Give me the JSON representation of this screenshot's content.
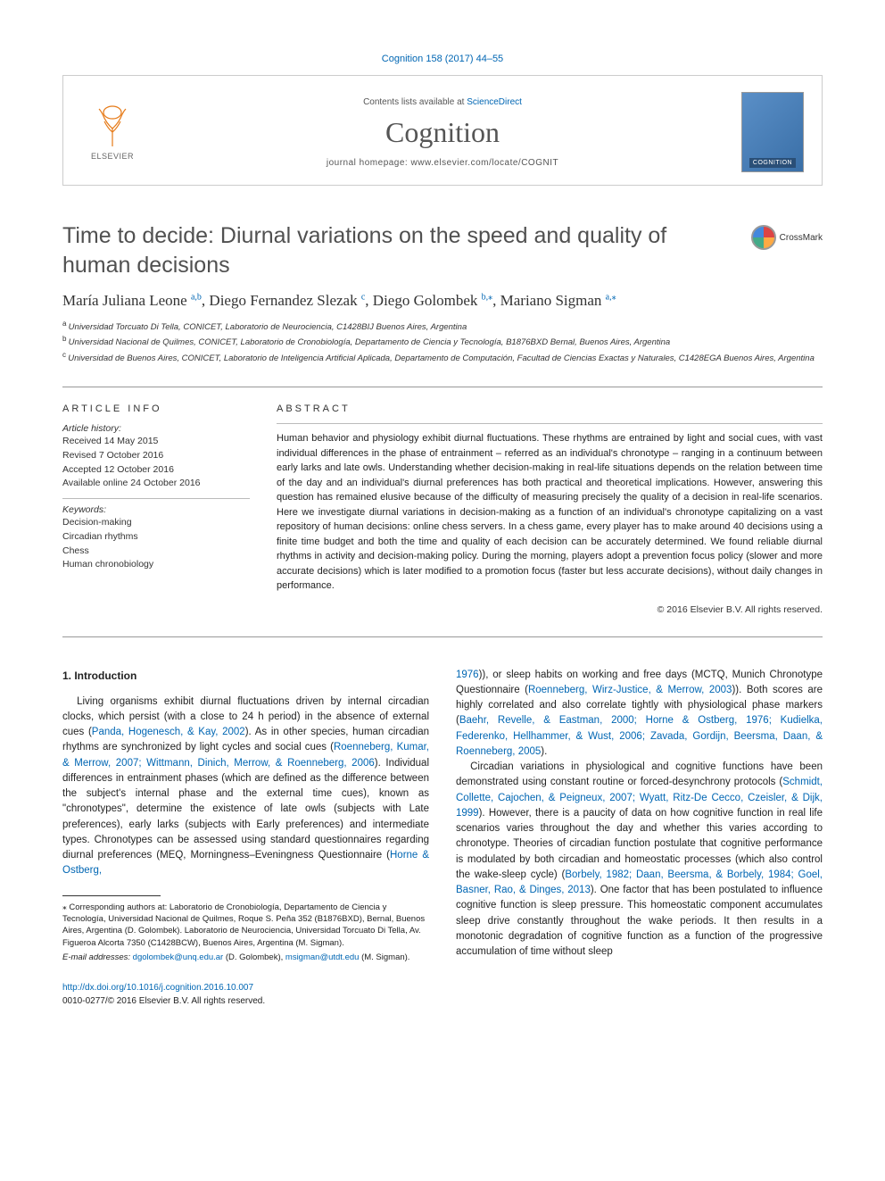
{
  "citation": "Cognition 158 (2017) 44–55",
  "header": {
    "contents_prefix": "Contents lists available at ",
    "contents_link": "ScienceDirect",
    "journal": "Cognition",
    "homepage_prefix": "journal homepage: ",
    "homepage_url": "www.elsevier.com/locate/COGNIT",
    "publisher_name": "ELSEVIER",
    "cover_label": "COGNITION"
  },
  "crossmark_label": "CrossMark",
  "title": "Time to decide: Diurnal variations on the speed and quality of human decisions",
  "authors_html": "María Juliana Leone|a,b|, Diego Fernandez Slezak|c|, Diego Golombek|b,*|, Mariano Sigman|a,*|",
  "authors": [
    {
      "name": "María Juliana Leone",
      "sup": "a,b"
    },
    {
      "name": "Diego Fernandez Slezak",
      "sup": "c"
    },
    {
      "name": "Diego Golombek",
      "sup": "b,⁎"
    },
    {
      "name": "Mariano Sigman",
      "sup": "a,⁎"
    }
  ],
  "affiliations": [
    {
      "sup": "a",
      "text": "Universidad Torcuato Di Tella, CONICET, Laboratorio de Neurociencia, C1428BIJ Buenos Aires, Argentina"
    },
    {
      "sup": "b",
      "text": "Universidad Nacional de Quilmes, CONICET, Laboratorio de Cronobiología, Departamento de Ciencia y Tecnología, B1876BXD Bernal, Buenos Aires, Argentina"
    },
    {
      "sup": "c",
      "text": "Universidad de Buenos Aires, CONICET, Laboratorio de Inteligencia Artificial Aplicada, Departamento de Computación, Facultad de Ciencias Exactas y Naturales, C1428EGA Buenos Aires, Argentina"
    }
  ],
  "article_info": {
    "heading": "article info",
    "history_label": "Article history:",
    "history": [
      "Received 14 May 2015",
      "Revised 7 October 2016",
      "Accepted 12 October 2016",
      "Available online 24 October 2016"
    ],
    "keywords_label": "Keywords:",
    "keywords": [
      "Decision-making",
      "Circadian rhythms",
      "Chess",
      "Human chronobiology"
    ]
  },
  "abstract": {
    "heading": "abstract",
    "text": "Human behavior and physiology exhibit diurnal fluctuations. These rhythms are entrained by light and social cues, with vast individual differences in the phase of entrainment – referred as an individual's chronotype – ranging in a continuum between early larks and late owls. Understanding whether decision-making in real-life situations depends on the relation between time of the day and an individual's diurnal preferences has both practical and theoretical implications. However, answering this question has remained elusive because of the difficulty of measuring precisely the quality of a decision in real-life scenarios. Here we investigate diurnal variations in decision-making as a function of an individual's chronotype capitalizing on a vast repository of human decisions: online chess servers. In a chess game, every player has to make around 40 decisions using a finite time budget and both the time and quality of each decision can be accurately determined. We found reliable diurnal rhythms in activity and decision-making policy. During the morning, players adopt a prevention focus policy (slower and more accurate decisions) which is later modified to a promotion focus (faster but less accurate decisions), without daily changes in performance.",
    "copyright": "© 2016 Elsevier B.V. All rights reserved."
  },
  "intro": {
    "heading": "1. Introduction",
    "para1_pre": "Living organisms exhibit diurnal fluctuations driven by internal circadian clocks, which persist (with a close to 24 h period) in the absence of external cues (",
    "cite1": "Panda, Hogenesch, & Kay, 2002",
    "para1_mid1": "). As in other species, human circadian rhythms are synchronized by light cycles and social cues (",
    "cite2": "Roenneberg, Kumar, & Merrow, 2007; Wittmann, Dinich, Merrow, & Roenneberg, 2006",
    "para1_mid2": "). Individual differences in entrainment phases (which are defined as the difference between the subject's internal phase and the external time cues), known as \"chronotypes\", determine the existence of late owls (subjects with Late preferences), early larks (subjects with Early preferences) and intermediate types. Chronotypes can be assessed using standard questionnaires regarding diurnal preferences (MEQ, Morningness–Eveningness Questionnaire (",
    "cite3": "Horne & Ostberg,",
    "col2_cite3b": "1976",
    "col2_mid1": ")), or sleep habits on working and free days (MCTQ, Munich Chronotype Questionnaire (",
    "col2_cite4": "Roenneberg, Wirz-Justice, & Merrow, 2003",
    "col2_mid2": ")). Both scores are highly correlated and also correlate tightly with physiological phase markers (",
    "col2_cite5": "Baehr, Revelle, & Eastman, 2000; Horne & Ostberg, 1976; Kudielka, Federenko, Hellhammer, & Wust, 2006; Zavada, Gordijn, Beersma, Daan, & Roenneberg, 2005",
    "col2_mid3": ").",
    "para2_pre": "Circadian variations in physiological and cognitive functions have been demonstrated using constant routine or forced-desynchrony protocols (",
    "para2_cite1": "Schmidt, Collette, Cajochen, & Peigneux, 2007; Wyatt, Ritz-De Cecco, Czeisler, & Dijk, 1999",
    "para2_mid1": "). However, there is a paucity of data on how cognitive function in real life scenarios varies throughout the day and whether this varies according to chronotype. Theories of circadian function postulate that cognitive performance is modulated by both circadian and homeostatic processes (which also control the wake-sleep cycle) (",
    "para2_cite2": "Borbely, 1982; Daan, Beersma, & Borbely, 1984; Goel, Basner, Rao, & Dinges, 2013",
    "para2_mid2": "). One factor that has been postulated to influence cognitive function is sleep pressure. This homeostatic component accumulates sleep drive constantly throughout the wake periods. It then results in a monotonic degradation of cognitive function as a function of the progressive accumulation of time without sleep"
  },
  "footnote": {
    "corr_label": "⁎ Corresponding authors at: Laboratorio de Cronobiología, Departamento de Ciencia y Tecnología, Universidad Nacional de Quilmes, Roque S. Peña 352 (B1876BXD), Bernal, Buenos Aires, Argentina (D. Golombek). Laboratorio de Neurociencia, Universidad Torcuato Di Tella, Av. Figueroa Alcorta 7350 (C1428BCW), Buenos Aires, Argentina (M. Sigman).",
    "email_label": "E-mail addresses: ",
    "email1": "dgolombek@unq.edu.ar",
    "email1_who": " (D. Golombek), ",
    "email2": "msigman@utdt.edu",
    "email2_who": " (M. Sigman)."
  },
  "doi": {
    "url": "http://dx.doi.org/10.1016/j.cognition.2016.10.007",
    "issn_line": "0010-0277/© 2016 Elsevier B.V. All rights reserved."
  },
  "colors": {
    "link": "#0066b3",
    "text": "#222222",
    "title_gray": "#505050",
    "border": "#cccccc"
  }
}
